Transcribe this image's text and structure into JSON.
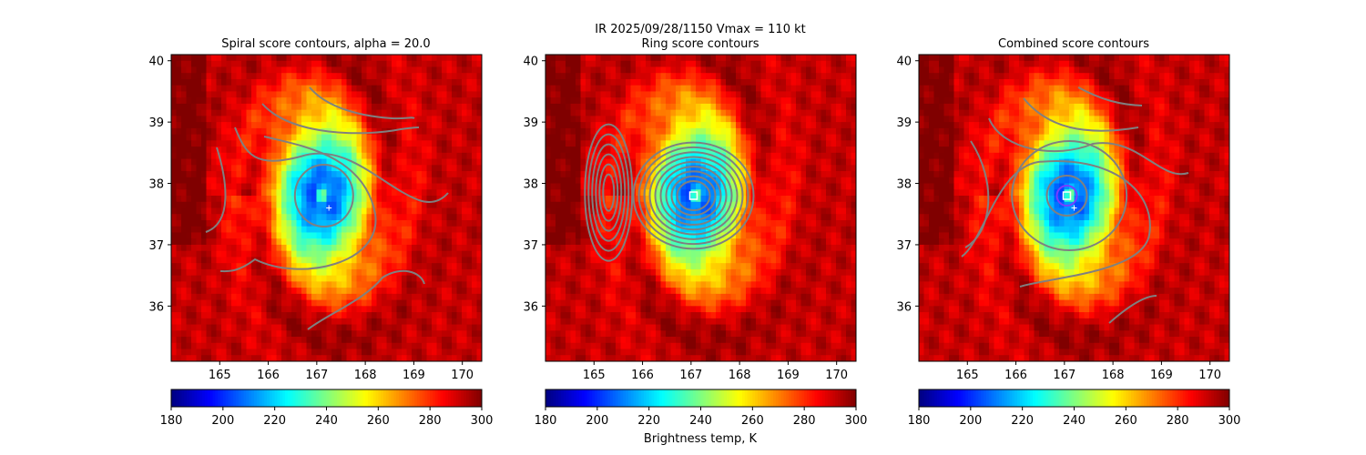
{
  "figure": {
    "suptitle_line1": "IR  2025/09/28/1150    Vmax = 110 kt",
    "colorbar_label": "Brightness temp, K"
  },
  "chart_data": [
    {
      "type": "heatmap",
      "title": "Spiral score contours, alpha = 20.0",
      "xlim": [
        164.0,
        170.4
      ],
      "ylim": [
        35.1,
        40.1
      ],
      "xticks": [
        165,
        166,
        167,
        168,
        169,
        170
      ],
      "yticks": [
        36,
        37,
        38,
        39,
        40
      ],
      "center": [
        167.1,
        37.8
      ],
      "eye_marker": [
        167.25,
        37.6
      ],
      "colorbar": {
        "range": [
          180,
          300
        ],
        "ticks": [
          180,
          200,
          220,
          240,
          260,
          280,
          300
        ],
        "colormap": "jet_r"
      },
      "contour_color": "#808080"
    },
    {
      "type": "heatmap",
      "title": "Ring score contours",
      "xlim": [
        164.0,
        170.4
      ],
      "ylim": [
        35.1,
        40.1
      ],
      "xticks": [
        165,
        166,
        167,
        168,
        169,
        170
      ],
      "yticks": [
        36,
        37,
        38,
        39,
        40
      ],
      "center": [
        167.1,
        37.8
      ],
      "best_center": [
        167.05,
        37.8
      ],
      "colorbar": {
        "range": [
          180,
          300
        ],
        "ticks": [
          180,
          200,
          220,
          240,
          260,
          280,
          300
        ],
        "colormap": "jet_r"
      },
      "contour_color": "#808080"
    },
    {
      "type": "heatmap",
      "title": "Combined score contours",
      "xlim": [
        164.0,
        170.4
      ],
      "ylim": [
        35.1,
        40.1
      ],
      "xticks": [
        165,
        166,
        167,
        168,
        169,
        170
      ],
      "yticks": [
        36,
        37,
        38,
        39,
        40
      ],
      "center": [
        167.1,
        37.8
      ],
      "best_center": [
        167.05,
        37.8
      ],
      "eye_marker": [
        167.2,
        37.6
      ],
      "colorbar": {
        "range": [
          180,
          300
        ],
        "ticks": [
          180,
          200,
          220,
          240,
          260,
          280,
          300
        ],
        "colormap": "jet_r"
      },
      "contour_color": "#808080"
    }
  ]
}
